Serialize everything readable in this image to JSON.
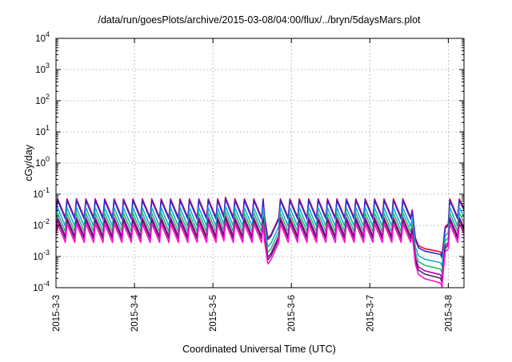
{
  "chart_data": {
    "type": "line",
    "title": "/data/run/goesPlots/archive/2015-03-08/04:00/flux/../bryn/5daysMars.plot",
    "xlabel": "Coordinated Universal Time (UTC)",
    "ylabel": "cGy/day",
    "yscale": "log",
    "ylim": [
      0.0001,
      10000
    ],
    "xlim": [
      0,
      5.2
    ],
    "grid": true,
    "x_ticks": [
      {
        "value": 0,
        "label": "2015-3-3"
      },
      {
        "value": 1,
        "label": "2015-3-4"
      },
      {
        "value": 2,
        "label": "2015-3-5"
      },
      {
        "value": 3,
        "label": "2015-3-6"
      },
      {
        "value": 4,
        "label": "2015-3-7"
      },
      {
        "value": 5,
        "label": "2015-3-8"
      }
    ],
    "y_ticks": [
      {
        "value": 0.0001,
        "base": "10",
        "exp": "-4"
      },
      {
        "value": 0.001,
        "base": "10",
        "exp": "-3"
      },
      {
        "value": 0.01,
        "base": "10",
        "exp": "-2"
      },
      {
        "value": 0.1,
        "base": "10",
        "exp": "-1"
      },
      {
        "value": 1,
        "base": "10",
        "exp": "0"
      },
      {
        "value": 10,
        "base": "10",
        "exp": "1"
      },
      {
        "value": 100,
        "base": "10",
        "exp": "2"
      },
      {
        "value": 1000,
        "base": "10",
        "exp": "3"
      },
      {
        "value": 10000,
        "base": "10",
        "exp": "4"
      }
    ],
    "profile": {
      "description": "sawtooth envelope shared by all series, given as log10 of the top (red) series",
      "x": [
        0,
        0.02,
        0.12,
        0.14,
        0.24,
        0.26,
        0.36,
        0.38,
        0.48,
        0.5,
        0.6,
        0.62,
        0.72,
        0.74,
        0.84,
        0.86,
        0.96,
        0.98,
        1.08,
        1.1,
        1.2,
        1.22,
        1.32,
        1.34,
        1.44,
        1.46,
        1.56,
        1.58,
        1.68,
        1.7,
        1.8,
        1.82,
        1.92,
        1.94,
        2.04,
        2.06,
        2.14,
        2.16,
        2.26,
        2.28,
        2.38,
        2.4,
        2.5,
        2.52,
        2.62,
        2.64,
        2.66,
        2.7,
        2.74,
        2.84,
        2.86,
        2.96,
        2.98,
        3.08,
        3.1,
        3.2,
        3.22,
        3.32,
        3.34,
        3.44,
        3.46,
        3.56,
        3.58,
        3.68,
        3.7,
        3.8,
        3.82,
        3.92,
        3.94,
        4.04,
        4.06,
        4.16,
        4.18,
        4.28,
        4.3,
        4.4,
        4.42,
        4.52,
        4.54,
        4.58,
        4.62,
        4.7,
        4.8,
        4.9,
        4.92,
        4.94,
        4.96,
        5.0,
        5.02,
        5.12,
        5.14,
        5.2
      ],
      "log_top": [
        -1.5,
        -1.15,
        -1.75,
        -1.15,
        -1.75,
        -1.15,
        -1.75,
        -1.15,
        -1.75,
        -1.15,
        -1.75,
        -1.15,
        -1.75,
        -1.15,
        -1.75,
        -1.15,
        -1.75,
        -1.15,
        -1.75,
        -1.15,
        -1.75,
        -1.15,
        -1.75,
        -1.15,
        -1.75,
        -1.15,
        -1.75,
        -1.15,
        -1.75,
        -1.15,
        -1.75,
        -1.15,
        -1.75,
        -1.15,
        -1.75,
        -1.15,
        -1.7,
        -1.1,
        -1.75,
        -1.15,
        -1.75,
        -1.15,
        -1.75,
        -1.15,
        -1.75,
        -1.15,
        -1.75,
        -2.4,
        -2.3,
        -1.75,
        -1.15,
        -1.75,
        -1.15,
        -1.75,
        -1.15,
        -1.75,
        -1.15,
        -1.75,
        -1.15,
        -1.75,
        -1.15,
        -1.75,
        -1.15,
        -1.75,
        -1.15,
        -1.75,
        -1.15,
        -1.75,
        -1.15,
        -1.75,
        -1.15,
        -1.75,
        -1.15,
        -1.75,
        -1.15,
        -1.75,
        -1.15,
        -1.75,
        -1.5,
        -2.4,
        -2.65,
        -2.75,
        -2.8,
        -2.85,
        -2.95,
        -2.5,
        -2.05,
        -1.95,
        -1.15,
        -1.75,
        -1.15,
        -1.45
      ]
    },
    "series": [
      {
        "color": "#e8002a",
        "offset": 0.0
      },
      {
        "color": "#2a2ad8",
        "offset": -0.05
      },
      {
        "color": "#1aa8d8",
        "offset": -0.28
      },
      {
        "color": "#20c070",
        "offset": -0.45
      },
      {
        "color": "#b000b0",
        "offset": -0.6
      },
      {
        "color": "#502060",
        "offset": -0.68
      },
      {
        "color": "#ff10d0",
        "offset": -0.8
      }
    ]
  }
}
